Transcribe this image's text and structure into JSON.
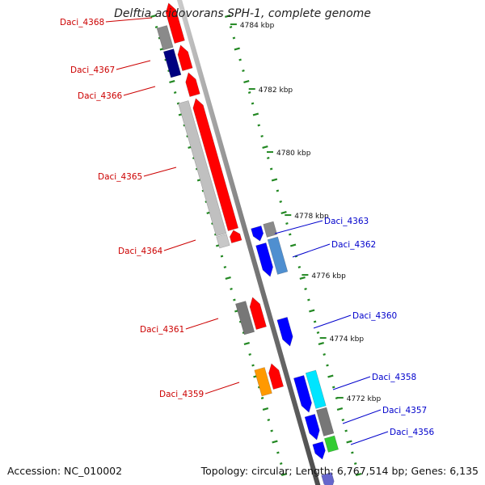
{
  "title": "Delftia acidovorans SPH-1, complete genome",
  "footer": {
    "accession": "Accession: NC_010002",
    "topology": "Topology: circular; Length: 6,767,514 bp; Genes: 6,135"
  },
  "colors": {
    "forward_strand": "#ff0000",
    "reverse_strand": "#0000ff",
    "label_forward": "#cc0000",
    "label_reverse": "#0000cc",
    "gc_ticks": "#228822",
    "backbone": "#888888"
  },
  "scale_ticks": [
    "4784 kbp",
    "4782 kbp",
    "4780 kbp",
    "4778 kbp",
    "4776 kbp",
    "4774 kbp",
    "4772 kbp"
  ],
  "forward_genes": [
    "Daci_4368",
    "Daci_4367",
    "Daci_4366",
    "Daci_4365",
    "Daci_4364",
    "Daci_4361",
    "Daci_4359"
  ],
  "reverse_genes": [
    "Daci_4363",
    "Daci_4362",
    "Daci_4360",
    "Daci_4358",
    "Daci_4357",
    "Daci_4356"
  ]
}
